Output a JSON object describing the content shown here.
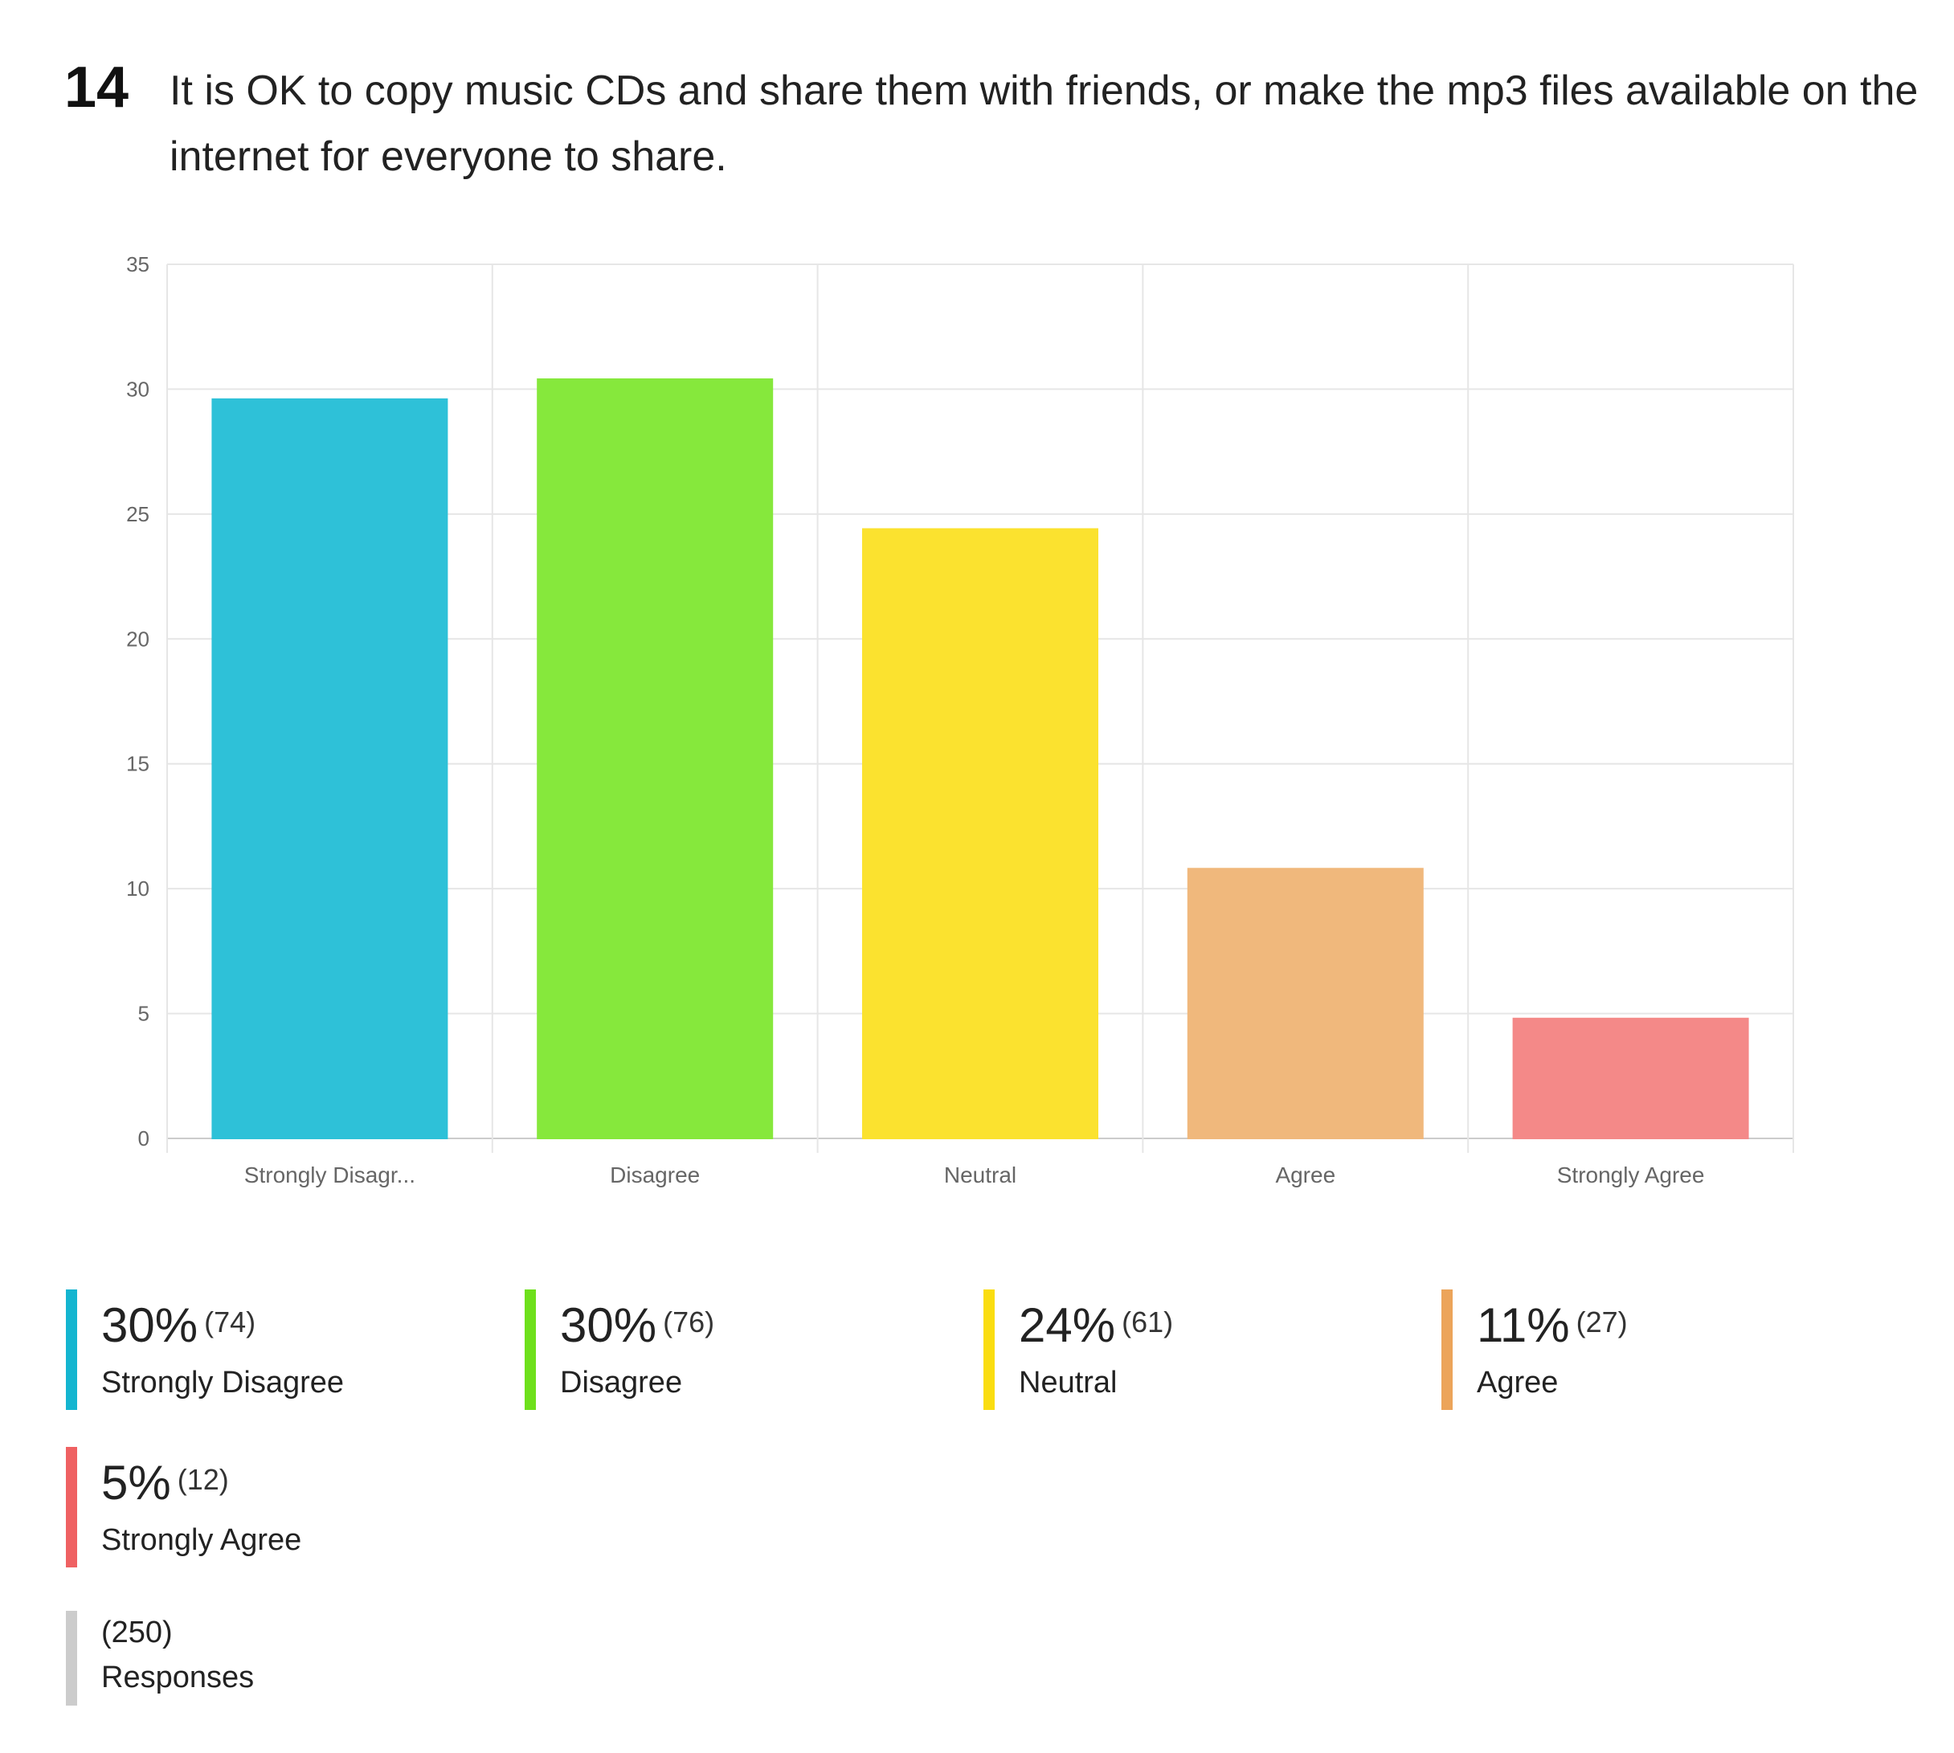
{
  "question": {
    "number": "14",
    "text": "It is OK to copy music CDs and share them with friends, or make the mp3 files available on the internet for everyone to share."
  },
  "chart_data": {
    "type": "bar",
    "categories": [
      "Strongly Disagr...",
      "Disagree",
      "Neutral",
      "Agree",
      "Strongly Agree"
    ],
    "values": [
      29.6,
      30.4,
      24.4,
      10.8,
      4.8
    ],
    "colors": [
      "#2ec1d8",
      "#86e83c",
      "#fbe22f",
      "#f0b87c",
      "#f48988"
    ],
    "title": "",
    "xlabel": "",
    "ylabel": "",
    "ylim": [
      0,
      35
    ],
    "yticks": [
      0,
      5,
      10,
      15,
      20,
      25,
      30,
      35
    ],
    "grid": true
  },
  "legend": [
    {
      "percent": "30%",
      "count": "(74)",
      "label": "Strongly Disagree",
      "color": "#14b5d0"
    },
    {
      "percent": "30%",
      "count": "(76)",
      "label": "Disagree",
      "color": "#6ee01c"
    },
    {
      "percent": "24%",
      "count": "(61)",
      "label": "Neutral",
      "color": "#fadd10"
    },
    {
      "percent": "11%",
      "count": "(27)",
      "label": "Agree",
      "color": "#eca45a"
    },
    {
      "percent": "5%",
      "count": "(12)",
      "label": "Strongly Agree",
      "color": "#ef6162"
    }
  ],
  "responses": {
    "count": "(250)",
    "label": "Responses",
    "color": "#cccccc"
  }
}
